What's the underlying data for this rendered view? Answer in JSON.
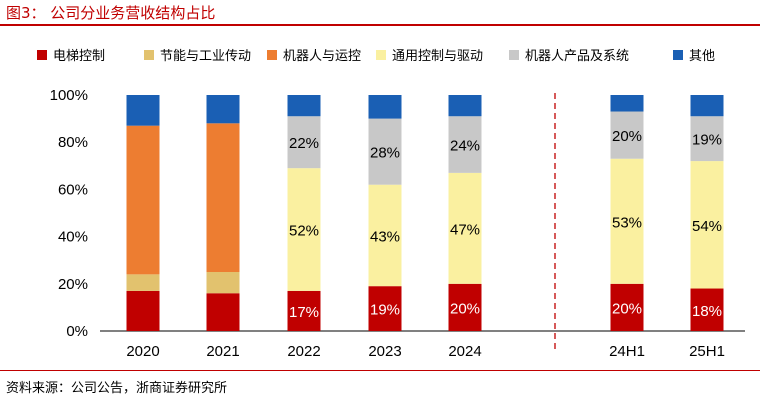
{
  "figure_title": "图3：  公司分业务营收结构占比",
  "source_note": "资料来源：公司公告，浙商证券研究所",
  "chart_data": {
    "type": "bar",
    "stacked": true,
    "categories": [
      "2020",
      "2021",
      "2022",
      "2023",
      "2024",
      "24H1",
      "25H1"
    ],
    "ylim": [
      0,
      100
    ],
    "y_ticks": [
      "0%",
      "20%",
      "40%",
      "60%",
      "80%",
      "100%"
    ],
    "legend_position": "top",
    "separator_after_category": "2024",
    "series": [
      {
        "name": "电梯控制",
        "color": "#c00000",
        "values": [
          17,
          16,
          17,
          19,
          20,
          null,
          null
        ],
        "labels": [
          null,
          null,
          "17%",
          "19%",
          "20%",
          null,
          null
        ]
      },
      {
        "name": "节能与工业传动",
        "color": "#e2c26e",
        "values": [
          7,
          9,
          null,
          null,
          null,
          null,
          null
        ],
        "labels": [
          null,
          null,
          null,
          null,
          null,
          null,
          null
        ]
      },
      {
        "name": "机器人与运控",
        "color": "#ed7d31",
        "values": [
          63,
          63,
          null,
          null,
          null,
          null,
          null
        ],
        "labels": [
          null,
          null,
          null,
          null,
          null,
          null,
          null
        ]
      },
      {
        "name": "通用控制与驱动",
        "color": "#faf0a0",
        "values": [
          null,
          null,
          52,
          43,
          47,
          53,
          54
        ],
        "labels": [
          null,
          null,
          "52%",
          "43%",
          "47%",
          "53%",
          "54%"
        ]
      },
      {
        "name": "机器人产品及系统",
        "color": "#c8c8c8",
        "values": [
          null,
          null,
          22,
          28,
          24,
          20,
          19
        ],
        "labels": [
          null,
          null,
          "22%",
          "28%",
          "24%",
          "20%",
          "19%"
        ]
      },
      {
        "name": "其他",
        "color": "#1a5fb4",
        "values": [
          13,
          12,
          9,
          10,
          9,
          7,
          9
        ],
        "labels": [
          null,
          null,
          null,
          null,
          null,
          null,
          null
        ]
      }
    ],
    "extra_bottom_segments": [
      {
        "series": "电梯控制",
        "category": "24H1",
        "value": 20,
        "label": "20%"
      },
      {
        "series": "电梯控制",
        "category": "25H1",
        "value": 18,
        "label": "18%"
      }
    ]
  }
}
